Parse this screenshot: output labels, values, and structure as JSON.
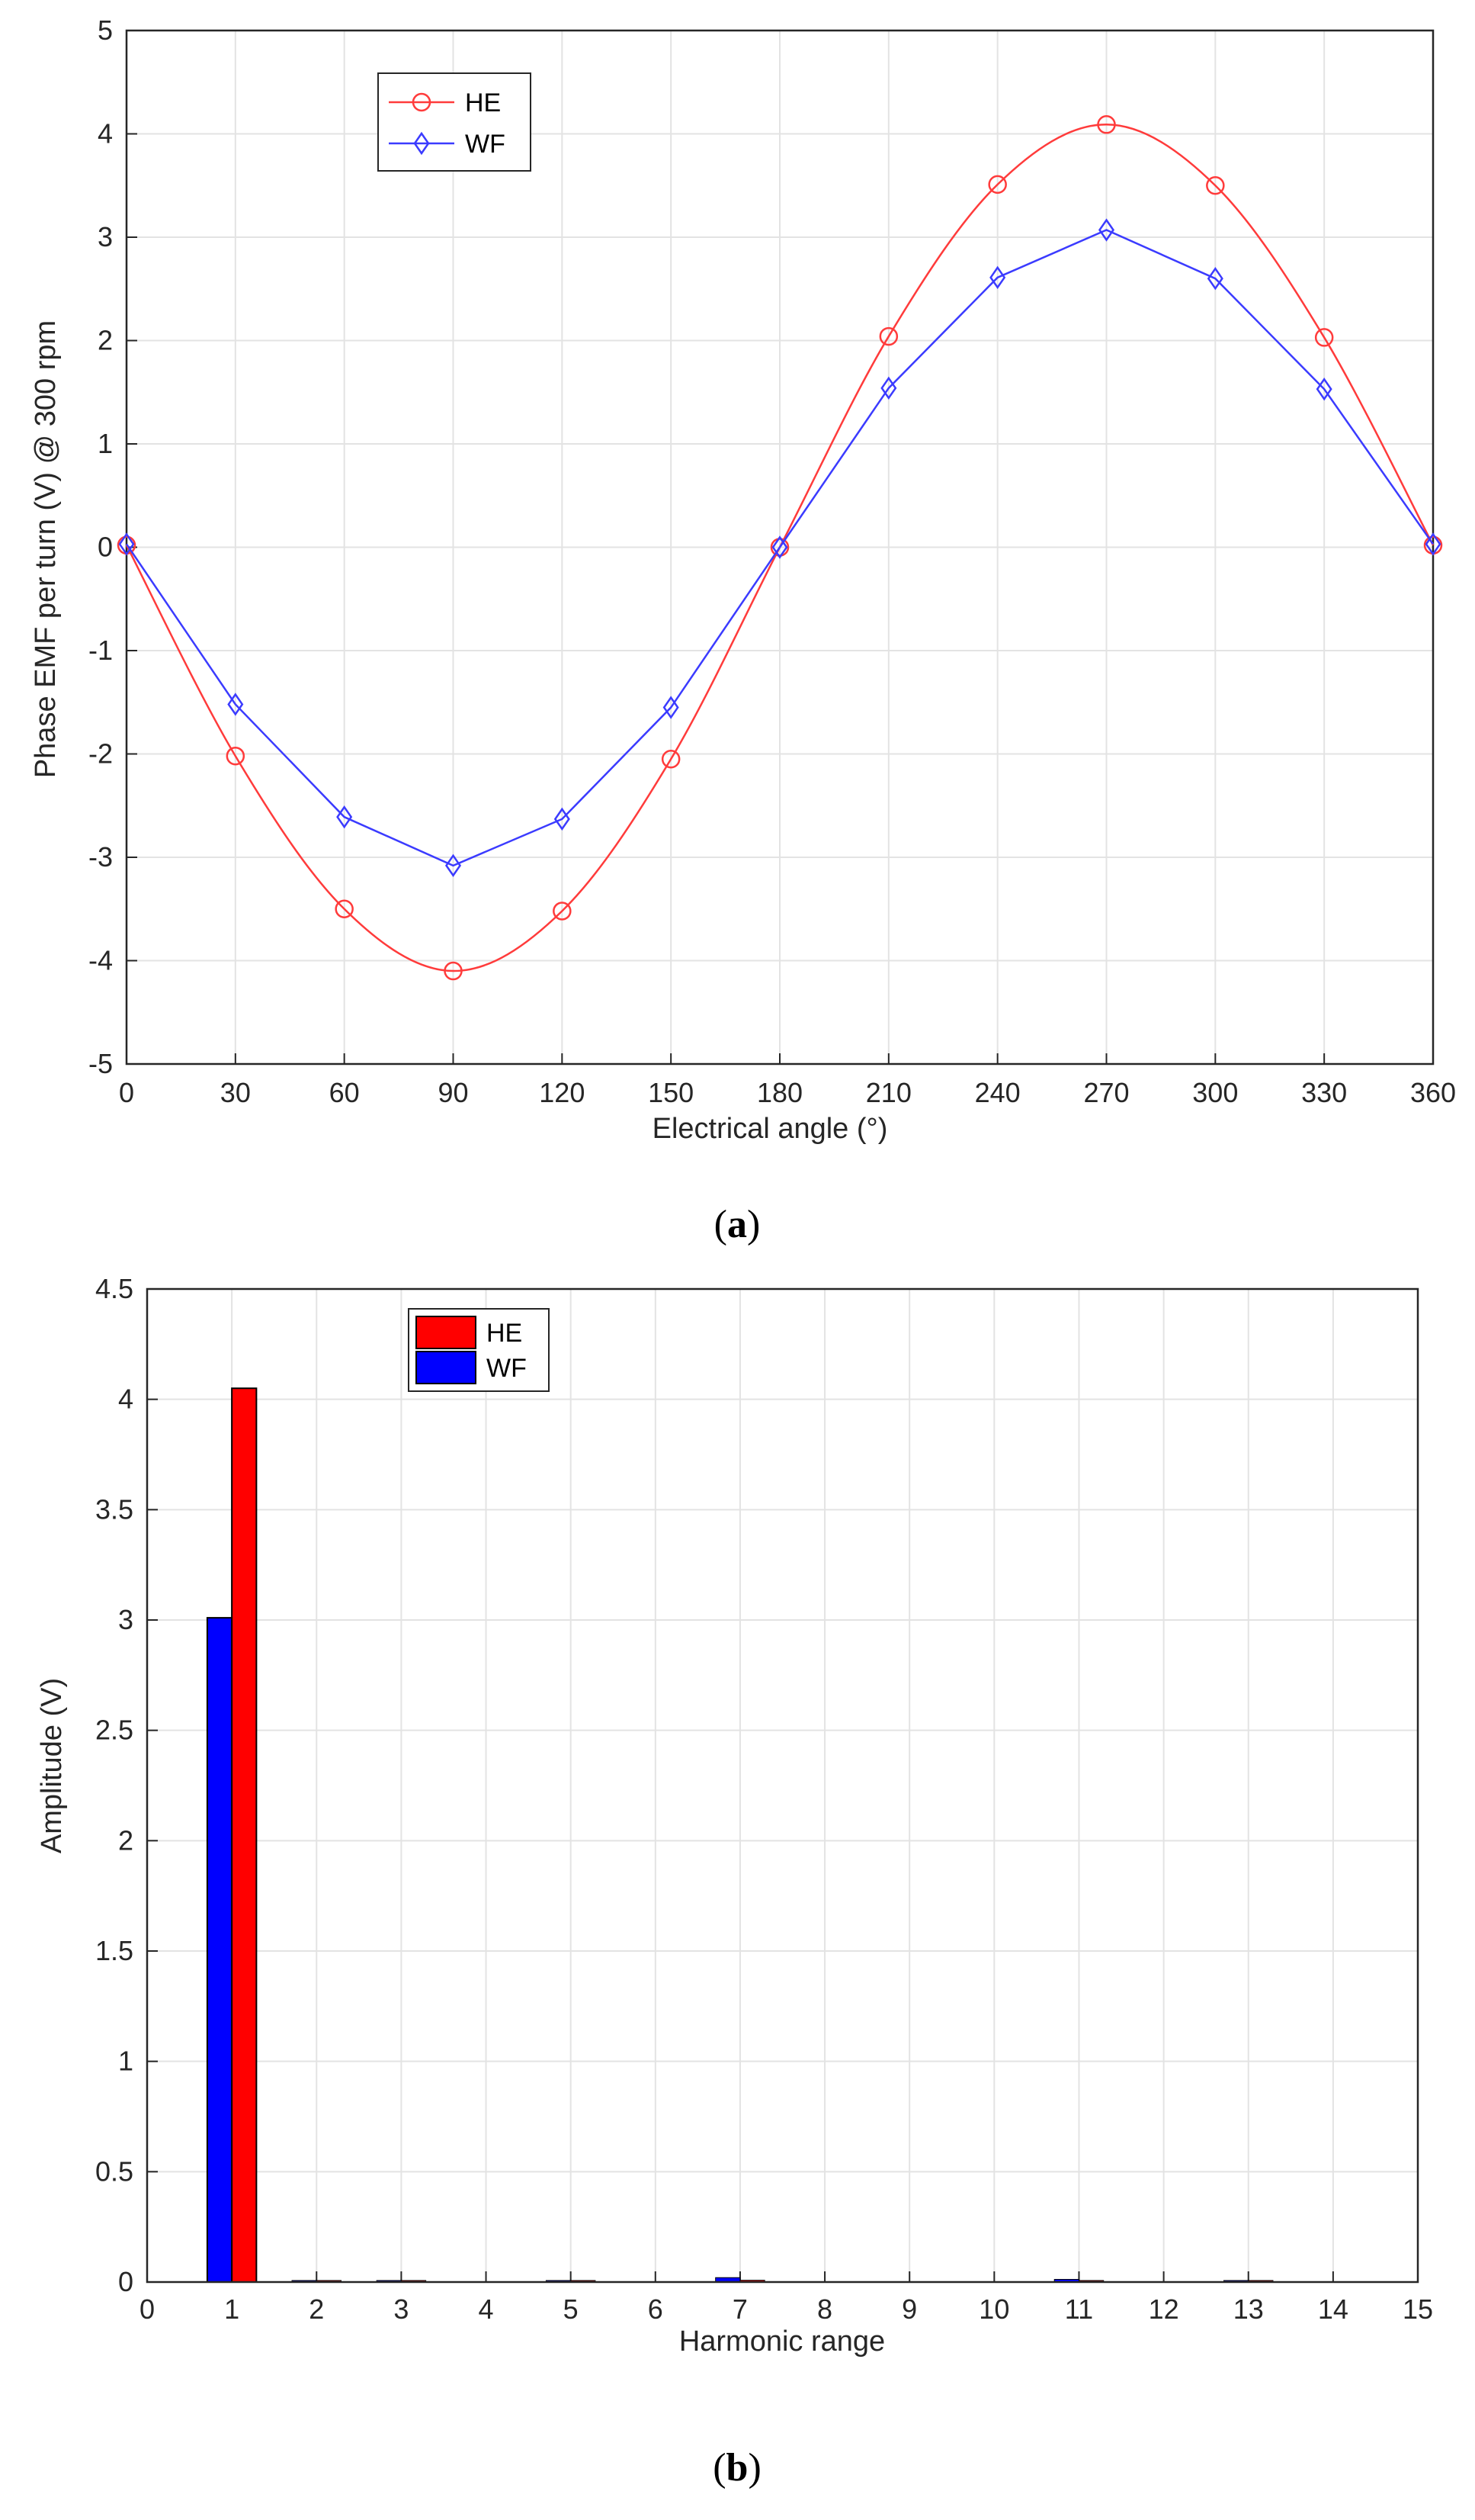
{
  "chart_data": [
    {
      "type": "line",
      "panel_label": "a",
      "xlabel": "Electrical angle (°)",
      "ylabel": "Phase EMF per turn (V) @ 300 rpm",
      "xlim": [
        0,
        360
      ],
      "ylim": [
        -5,
        5
      ],
      "x_ticks": [
        0,
        30,
        60,
        90,
        120,
        150,
        180,
        210,
        240,
        270,
        300,
        330,
        360
      ],
      "y_ticks": [
        -5,
        -4,
        -3,
        -2,
        -1,
        0,
        1,
        2,
        3,
        4,
        5
      ],
      "grid": true,
      "legend_position": "top-left",
      "x": [
        0,
        30,
        60,
        90,
        120,
        150,
        180,
        210,
        240,
        270,
        300,
        330,
        360
      ],
      "series": [
        {
          "name": "HE",
          "color": "#ff3b3b",
          "marker": "circle",
          "smooth": true,
          "values": [
            0.02,
            -2.02,
            -3.5,
            -4.1,
            -3.52,
            -2.05,
            0,
            2.04,
            3.51,
            4.09,
            3.5,
            2.03,
            0.02
          ]
        },
        {
          "name": "WF",
          "color": "#3b3bff",
          "marker": "diamond",
          "smooth": false,
          "values": [
            0.03,
            -1.52,
            -2.61,
            -3.08,
            -2.63,
            -1.55,
            0,
            1.54,
            2.61,
            3.07,
            2.6,
            1.53,
            0.03
          ]
        }
      ]
    },
    {
      "type": "bar",
      "panel_label": "b",
      "xlabel": "Harmonic range",
      "ylabel": "Amplitude (V)",
      "xlim": [
        0,
        15
      ],
      "ylim": [
        0,
        4.5
      ],
      "x_ticks": [
        0,
        1,
        2,
        3,
        4,
        5,
        6,
        7,
        8,
        9,
        10,
        11,
        12,
        13,
        14,
        15
      ],
      "y_ticks": [
        0,
        0.5,
        1,
        1.5,
        2,
        2.5,
        3,
        3.5,
        4,
        4.5
      ],
      "grid": true,
      "legend_position": "top-left",
      "categories": [
        1,
        2,
        3,
        4,
        5,
        6,
        7,
        8,
        9,
        10,
        11,
        12,
        13,
        14
      ],
      "series": [
        {
          "name": "HE",
          "color": "#ff0000",
          "values": [
            4.05,
            0.004,
            0.002,
            0,
            0.003,
            0,
            0.008,
            0,
            0,
            0,
            0.005,
            0,
            0.003,
            0
          ]
        },
        {
          "name": "WF",
          "color": "#0000ff",
          "values": [
            3.01,
            0.006,
            0.003,
            0,
            0.004,
            0,
            0.02,
            0,
            0,
            0,
            0.012,
            0,
            0.004,
            0
          ]
        }
      ]
    }
  ]
}
